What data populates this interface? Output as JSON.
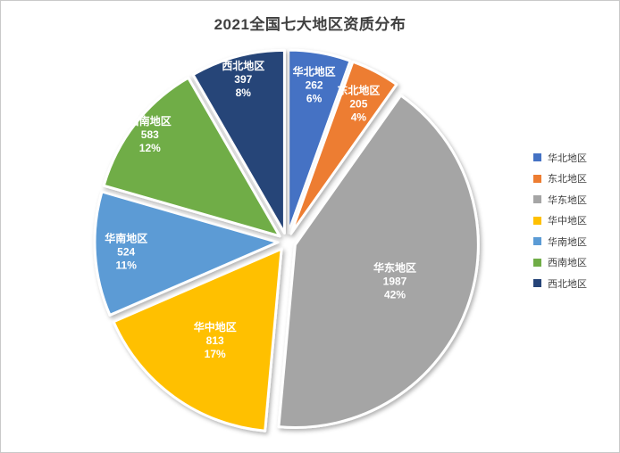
{
  "chart_data": {
    "type": "pie",
    "title": "2021全国七大地区资质分布",
    "legend_position": "right",
    "direction": "clockwise",
    "start_angle_deg": 0,
    "slices": [
      {
        "id": "north-china",
        "label": "华北地区",
        "value": 262,
        "percent_label": "6%",
        "color": "#4472C4"
      },
      {
        "id": "northeast-china",
        "label": "东北地区",
        "value": 205,
        "percent_label": "4%",
        "color": "#ED7D31"
      },
      {
        "id": "east-china",
        "label": "华东地区",
        "value": 1987,
        "percent_label": "42%",
        "color": "#A5A5A5"
      },
      {
        "id": "central-china",
        "label": "华中地区",
        "value": 813,
        "percent_label": "17%",
        "color": "#FFC000"
      },
      {
        "id": "south-china",
        "label": "华南地区",
        "value": 524,
        "percent_label": "11%",
        "color": "#5B9BD5"
      },
      {
        "id": "southwest-china",
        "label": "西南地区",
        "value": 583,
        "percent_label": "12%",
        "color": "#70AD47"
      },
      {
        "id": "northwest-china",
        "label": "西北地区",
        "value": 397,
        "percent_label": "8%",
        "color": "#264478"
      }
    ]
  },
  "colors": {
    "background": "#FFFFFF",
    "canvas_border": "#C9C9C9",
    "title_text": "#404040",
    "slice_label_text": "#FFFFFF",
    "legend_text": "#404040",
    "slice_separator": "#FFFFFF"
  }
}
